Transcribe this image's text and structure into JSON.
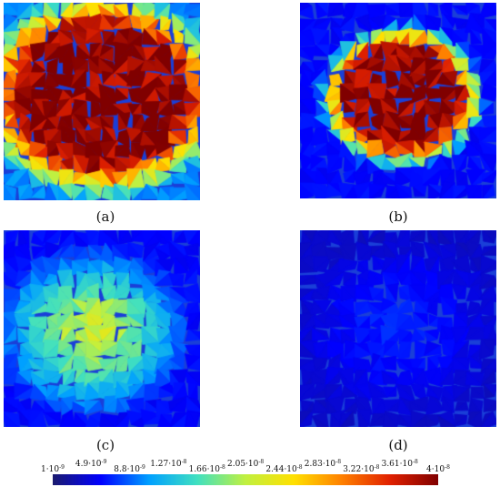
{
  "figure": {
    "panels": [
      {
        "id": "a",
        "caption": "(a)"
      },
      {
        "id": "b",
        "caption": "(b)"
      },
      {
        "id": "c",
        "caption": "(c)"
      },
      {
        "id": "d",
        "caption": "(d)"
      }
    ],
    "colorbar": {
      "colormap": "jet",
      "min": 1e-09,
      "max": 4e-08,
      "colors": [
        "#1a1a6e",
        "#0000ff",
        "#00a0ff",
        "#40e0c0",
        "#c0f040",
        "#ffe000",
        "#ff8000",
        "#e02000",
        "#800000"
      ],
      "tick_labels": [
        {
          "mantissa": "1",
          "exp": "-9",
          "value": 1e-09,
          "row": "low"
        },
        {
          "mantissa": "4.9",
          "exp": "-9",
          "value": 4.9e-09,
          "row": "high"
        },
        {
          "mantissa": "8.8",
          "exp": "-9",
          "value": 8.8e-09,
          "row": "low"
        },
        {
          "mantissa": "1.27",
          "exp": "-8",
          "value": 1.27e-08,
          "row": "high"
        },
        {
          "mantissa": "1.66",
          "exp": "-8",
          "value": 1.66e-08,
          "row": "low"
        },
        {
          "mantissa": "2.05",
          "exp": "-8",
          "value": 2.05e-08,
          "row": "high"
        },
        {
          "mantissa": "2.44",
          "exp": "-8",
          "value": 2.44e-08,
          "row": "low"
        },
        {
          "mantissa": "2.83",
          "exp": "-8",
          "value": 2.83e-08,
          "row": "high"
        },
        {
          "mantissa": "3.22",
          "exp": "-8",
          "value": 3.22e-08,
          "row": "low"
        },
        {
          "mantissa": "3.61",
          "exp": "-8",
          "value": 3.61e-08,
          "row": "high"
        },
        {
          "mantissa": "4",
          "exp": "-8",
          "value": 4e-08,
          "row": "low"
        }
      ]
    }
  },
  "chart_data": [
    {
      "type": "heatmap",
      "panel": "a",
      "description_value": "large central high-value region saturating at maximum",
      "peak": 4e-08,
      "edge": 1e-08
    },
    {
      "type": "heatmap",
      "panel": "b",
      "description_value": "central high-value region saturating at maximum",
      "peak": 4e-08,
      "edge": 6e-09
    },
    {
      "type": "heatmap",
      "panel": "c",
      "description_value": "moderate central region",
      "peak": 2.2e-08,
      "edge": 6e-09
    },
    {
      "type": "heatmap",
      "panel": "d",
      "description_value": "low values throughout",
      "peak": 7e-09,
      "edge": 4e-09
    }
  ]
}
